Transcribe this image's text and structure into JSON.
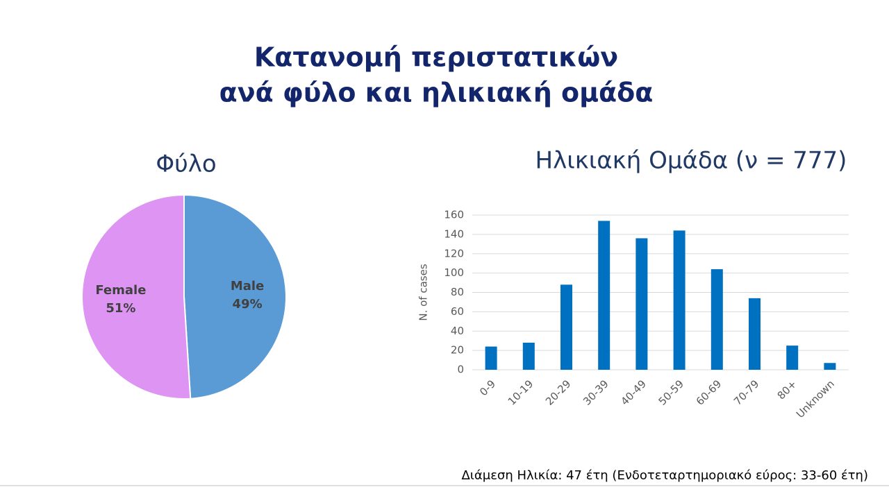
{
  "slide": {
    "title_lines": [
      "Κατανομή περιστατικών",
      "ανά φύλο και ηλικιακή ομάδα"
    ],
    "footnote": "Διάμεση Ηλικία: 47 έτη (Ενδοτεταρτημοριακό εύρος: 33-60 έτη)"
  },
  "chart_data": [
    {
      "type": "pie",
      "title": "Φύλο",
      "categories": [
        "Male",
        "Female"
      ],
      "values": [
        49,
        51
      ],
      "value_labels": [
        "49%",
        "51%"
      ],
      "colors": [
        "#5b9bd5",
        "#dd94f2"
      ]
    },
    {
      "type": "bar",
      "title": "Ηλικιακή Ομάδα (ν = 777)",
      "y_label": "N. of cases",
      "categories": [
        "0-9",
        "10-19",
        "20-29",
        "30-39",
        "40-49",
        "50-59",
        "60-69",
        "70-79",
        "80+",
        "Unknown"
      ],
      "values": [
        24,
        28,
        88,
        154,
        136,
        144,
        104,
        74,
        25,
        7
      ],
      "color": "#0070c0",
      "ylim": [
        0,
        160
      ],
      "yticks": [
        0,
        20,
        40,
        60,
        80,
        100,
        120,
        140,
        160
      ],
      "grid": true
    }
  ]
}
